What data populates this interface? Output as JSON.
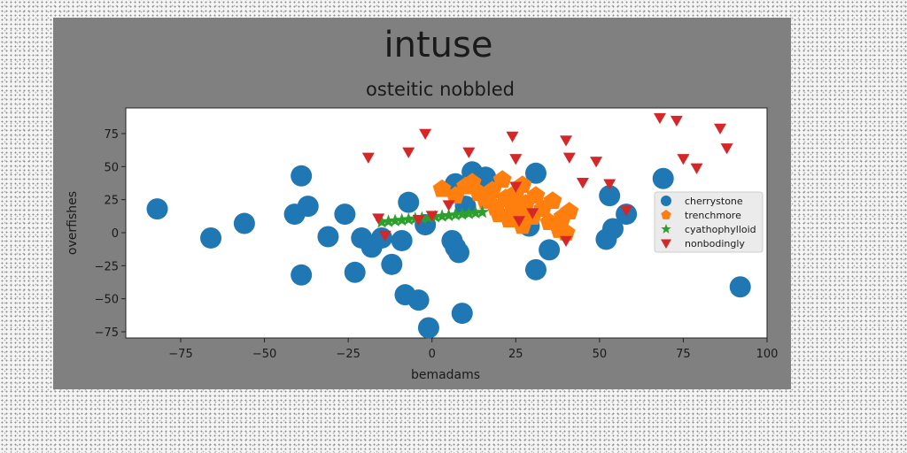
{
  "chart_data": {
    "type": "scatter",
    "title": "intuse",
    "subtitle": "osteitic nobbled",
    "xlabel": "bemadams",
    "ylabel": "overfishes",
    "xlim": [
      -90,
      100
    ],
    "ylim": [
      -80,
      93
    ],
    "xticks": [
      -75,
      -50,
      -25,
      0,
      25,
      50,
      75,
      100
    ],
    "yticks": [
      -75,
      -50,
      -25,
      0,
      25,
      50,
      75
    ],
    "grid": false,
    "legend_position": "center-right",
    "colors": {
      "figure_bg": "#808080",
      "axes_bg": "#ffffff",
      "text": "#1a1a1a"
    },
    "series": [
      {
        "name": "cherrystone",
        "marker": "circle",
        "color": "#1f77b4",
        "points": [
          [
            -82,
            18
          ],
          [
            -66,
            -4
          ],
          [
            -56,
            7
          ],
          [
            -41,
            14
          ],
          [
            -39,
            43
          ],
          [
            -37,
            20
          ],
          [
            -39,
            -32
          ],
          [
            -31,
            -3
          ],
          [
            -26,
            14
          ],
          [
            -23,
            -30
          ],
          [
            -21,
            -4
          ],
          [
            -18,
            -11
          ],
          [
            -15,
            -4
          ],
          [
            -12,
            -24
          ],
          [
            -9,
            -6
          ],
          [
            -7,
            23
          ],
          [
            -8,
            -47
          ],
          [
            -4,
            -51
          ],
          [
            -1,
            -72
          ],
          [
            -2,
            6
          ],
          [
            6,
            -6
          ],
          [
            7,
            -11
          ],
          [
            8,
            -15
          ],
          [
            7,
            37
          ],
          [
            9,
            -61
          ],
          [
            10,
            20
          ],
          [
            12,
            46
          ],
          [
            16,
            42
          ],
          [
            29,
            5
          ],
          [
            31,
            45
          ],
          [
            31,
            -28
          ],
          [
            35,
            -13
          ],
          [
            52,
            -5
          ],
          [
            53,
            28
          ],
          [
            54,
            3
          ],
          [
            58,
            14
          ],
          [
            69,
            41
          ],
          [
            92,
            -41
          ]
        ]
      },
      {
        "name": "trenchmore",
        "marker": "pentagon",
        "color": "#ff7f0e",
        "points": [
          [
            3,
            33
          ],
          [
            7,
            28
          ],
          [
            10,
            35
          ],
          [
            12,
            38
          ],
          [
            14,
            30
          ],
          [
            16,
            24
          ],
          [
            18,
            32
          ],
          [
            19,
            19
          ],
          [
            20,
            14
          ],
          [
            21,
            40
          ],
          [
            22,
            26
          ],
          [
            23,
            10
          ],
          [
            24,
            20
          ],
          [
            25,
            30
          ],
          [
            26,
            15
          ],
          [
            27,
            36
          ],
          [
            27,
            5
          ],
          [
            28,
            22
          ],
          [
            30,
            12
          ],
          [
            31,
            28
          ],
          [
            33,
            18
          ],
          [
            35,
            8
          ],
          [
            36,
            24
          ],
          [
            38,
            2
          ],
          [
            39,
            12
          ],
          [
            40,
            0
          ],
          [
            41,
            16
          ]
        ]
      },
      {
        "name": "cyathophylloid",
        "marker": "star",
        "color": "#2ca02c",
        "points": [
          [
            -15,
            8
          ],
          [
            -13,
            8.5
          ],
          [
            -11,
            9
          ],
          [
            -9,
            9.5
          ],
          [
            -7,
            10
          ],
          [
            -5,
            10.5
          ],
          [
            -3,
            11
          ],
          [
            -1,
            11.5
          ],
          [
            1,
            12
          ],
          [
            3,
            12.5
          ],
          [
            5,
            13
          ],
          [
            7,
            13.5
          ],
          [
            9,
            14
          ],
          [
            11,
            14.5
          ],
          [
            13,
            15
          ],
          [
            15,
            15.5
          ]
        ]
      },
      {
        "name": "nonbodingly",
        "marker": "triangle-down",
        "color": "#d62728",
        "points": [
          [
            -19,
            57
          ],
          [
            -16,
            11
          ],
          [
            -14,
            -2
          ],
          [
            -7,
            61
          ],
          [
            -4,
            10
          ],
          [
            -2,
            75
          ],
          [
            0,
            13
          ],
          [
            5,
            21
          ],
          [
            11,
            61
          ],
          [
            24,
            73
          ],
          [
            25,
            56
          ],
          [
            25,
            35
          ],
          [
            26,
            9
          ],
          [
            30,
            15
          ],
          [
            40,
            70
          ],
          [
            41,
            57
          ],
          [
            45,
            38
          ],
          [
            49,
            54
          ],
          [
            53,
            37
          ],
          [
            58,
            17
          ],
          [
            68,
            87
          ],
          [
            73,
            85
          ],
          [
            75,
            56
          ],
          [
            79,
            49
          ],
          [
            86,
            79
          ],
          [
            88,
            64
          ],
          [
            40,
            -6
          ]
        ]
      }
    ]
  }
}
